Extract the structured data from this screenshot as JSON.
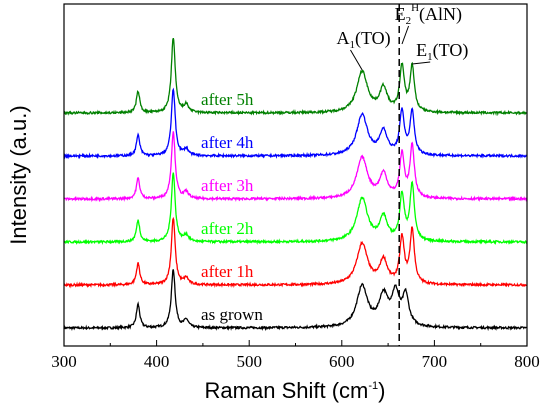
{
  "chart_data": {
    "type": "line",
    "xlabel_main": "Raman Shift (cm",
    "xlabel_sup": "-1",
    "xlabel_end": ")",
    "ylabel": "Intensity (a.u.)",
    "xlim": [
      300,
      800
    ],
    "xticks": [
      300,
      400,
      500,
      600,
      700,
      800
    ],
    "reference_line_x": 662,
    "peak_labels": [
      {
        "base": "A",
        "sub": "1",
        "rest": "(TO)",
        "x": 618
      },
      {
        "base": "E",
        "sub": "2",
        "sup": "H",
        "rest": "(AlN)",
        "x": 657
      },
      {
        "base": "E",
        "sub": "1",
        "rest": "(TO)",
        "x": 676
      }
    ],
    "series": [
      {
        "name": "as grown",
        "color": "#000000",
        "offset": 0.0,
        "peaks": [
          [
            380,
            0.55,
            2.2
          ],
          [
            418,
            1.35,
            2.5
          ],
          [
            432,
            0.18,
            3
          ],
          [
            622,
            0.95,
            7
          ],
          [
            645,
            0.7,
            6
          ],
          [
            658,
            0.75,
            5
          ],
          [
            669,
            0.7,
            4
          ]
        ]
      },
      {
        "name": "after 1h",
        "color": "#ff0000",
        "offset": 1.0,
        "peaks": [
          [
            380,
            0.5,
            2.2
          ],
          [
            418,
            1.55,
            2.5
          ],
          [
            432,
            0.15,
            3
          ],
          [
            622,
            0.95,
            7
          ],
          [
            645,
            0.55,
            5
          ],
          [
            665,
            1.05,
            3
          ],
          [
            676,
            1.25,
            2.8
          ]
        ]
      },
      {
        "name": "after 2h",
        "color": "#00ff00",
        "offset": 2.0,
        "peaks": [
          [
            380,
            0.5,
            2.2
          ],
          [
            418,
            1.6,
            2.5
          ],
          [
            432,
            0.15,
            3
          ],
          [
            622,
            1.0,
            7
          ],
          [
            645,
            0.55,
            5
          ],
          [
            665,
            1.05,
            3
          ],
          [
            676,
            1.3,
            2.8
          ]
        ]
      },
      {
        "name": "after 3h",
        "color": "#ff00ff",
        "offset": 3.0,
        "peaks": [
          [
            380,
            0.48,
            2.2
          ],
          [
            418,
            1.55,
            2.5
          ],
          [
            432,
            0.15,
            3
          ],
          [
            622,
            0.95,
            7
          ],
          [
            645,
            0.55,
            5
          ],
          [
            665,
            1.0,
            3
          ],
          [
            676,
            1.2,
            2.8
          ]
        ]
      },
      {
        "name": "after 4h",
        "color": "#0000ff",
        "offset": 4.0,
        "peaks": [
          [
            380,
            0.48,
            2.2
          ],
          [
            418,
            1.55,
            2.5
          ],
          [
            432,
            0.15,
            3
          ],
          [
            622,
            0.95,
            7
          ],
          [
            645,
            0.55,
            5
          ],
          [
            665,
            1.0,
            3
          ],
          [
            676,
            1.0,
            2.8
          ]
        ]
      },
      {
        "name": "after 5h",
        "color": "#008000",
        "offset": 5.0,
        "peaks": [
          [
            380,
            0.5,
            2.2
          ],
          [
            418,
            1.75,
            2.5
          ],
          [
            432,
            0.18,
            3
          ],
          [
            622,
            0.95,
            7
          ],
          [
            645,
            0.55,
            5
          ],
          [
            665,
            1.05,
            3
          ],
          [
            676,
            1.05,
            2.8
          ]
        ]
      }
    ],
    "series_label_x": 448
  }
}
